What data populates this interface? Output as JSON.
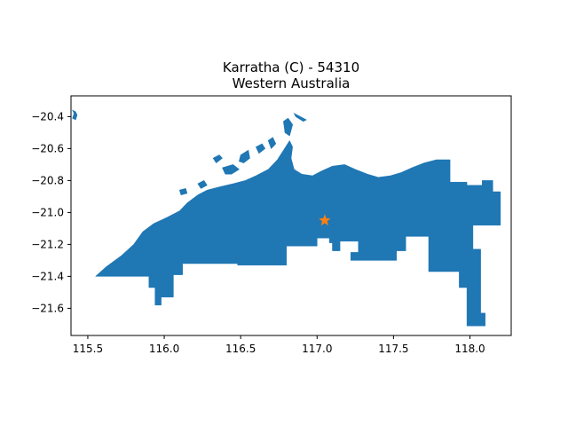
{
  "title": {
    "line1": "Karratha (C) - 54310",
    "line2": "Western Australia"
  },
  "colors": {
    "region_fill": "#1f77b4",
    "marker": "#ff7f0e",
    "axes": "#000000"
  },
  "map": {
    "xlim": [
      115.39,
      118.27
    ],
    "ylim": [
      -21.77,
      -20.27
    ],
    "x_ticks": [
      115.5,
      116.0,
      116.5,
      117.0,
      117.5,
      118.0
    ],
    "x_tick_labels": [
      "115.5",
      "116.0",
      "116.5",
      "117.0",
      "117.5",
      "118.0"
    ],
    "y_ticks": [
      -20.4,
      -20.6,
      -20.8,
      -21.0,
      -21.2,
      -21.4,
      -21.6
    ],
    "y_tick_labels": [
      "−20.4",
      "−20.6",
      "−20.8",
      "−21.0",
      "−21.2",
      "−21.4",
      "−21.6"
    ],
    "marker_icon": "star-icon",
    "marker_location": {
      "lon": 117.05,
      "lat": -21.05
    },
    "region_polygon": [
      [
        115.55,
        -21.4
      ],
      [
        115.62,
        -21.34
      ],
      [
        115.72,
        -21.27
      ],
      [
        115.8,
        -21.2
      ],
      [
        115.86,
        -21.12
      ],
      [
        115.93,
        -21.07
      ],
      [
        116.02,
        -21.03
      ],
      [
        116.1,
        -20.99
      ],
      [
        116.15,
        -20.94
      ],
      [
        116.22,
        -20.89
      ],
      [
        116.28,
        -20.86
      ],
      [
        116.36,
        -20.84
      ],
      [
        116.45,
        -20.82
      ],
      [
        116.53,
        -20.8
      ],
      [
        116.6,
        -20.77
      ],
      [
        116.68,
        -20.73
      ],
      [
        116.74,
        -20.67
      ],
      [
        116.78,
        -20.61
      ],
      [
        116.82,
        -20.55
      ],
      [
        116.84,
        -20.59
      ],
      [
        116.83,
        -20.66
      ],
      [
        116.85,
        -20.73
      ],
      [
        116.9,
        -20.76
      ],
      [
        116.97,
        -20.77
      ],
      [
        117.03,
        -20.74
      ],
      [
        117.1,
        -20.71
      ],
      [
        117.18,
        -20.7
      ],
      [
        117.25,
        -20.73
      ],
      [
        117.33,
        -20.76
      ],
      [
        117.4,
        -20.78
      ],
      [
        117.48,
        -20.77
      ],
      [
        117.55,
        -20.75
      ],
      [
        117.62,
        -20.72
      ],
      [
        117.7,
        -20.69
      ],
      [
        117.78,
        -20.67
      ],
      [
        117.87,
        -20.67
      ],
      [
        117.87,
        -20.81
      ],
      [
        117.98,
        -20.81
      ],
      [
        117.98,
        -20.83
      ],
      [
        118.08,
        -20.83
      ],
      [
        118.08,
        -20.8
      ],
      [
        118.15,
        -20.8
      ],
      [
        118.15,
        -20.87
      ],
      [
        118.2,
        -20.87
      ],
      [
        118.2,
        -21.08
      ],
      [
        118.02,
        -21.08
      ],
      [
        118.02,
        -21.23
      ],
      [
        118.07,
        -21.23
      ],
      [
        118.07,
        -21.63
      ],
      [
        118.1,
        -21.63
      ],
      [
        118.1,
        -21.71
      ],
      [
        117.98,
        -21.71
      ],
      [
        117.98,
        -21.47
      ],
      [
        117.93,
        -21.47
      ],
      [
        117.93,
        -21.37
      ],
      [
        117.73,
        -21.37
      ],
      [
        117.73,
        -21.15
      ],
      [
        117.58,
        -21.15
      ],
      [
        117.58,
        -21.24
      ],
      [
        117.52,
        -21.24
      ],
      [
        117.52,
        -21.3
      ],
      [
        117.22,
        -21.3
      ],
      [
        117.22,
        -21.25
      ],
      [
        117.27,
        -21.25
      ],
      [
        117.27,
        -21.18
      ],
      [
        117.15,
        -21.18
      ],
      [
        117.15,
        -21.24
      ],
      [
        117.1,
        -21.24
      ],
      [
        117.1,
        -21.19
      ],
      [
        117.08,
        -21.19
      ],
      [
        117.08,
        -21.16
      ],
      [
        117.0,
        -21.16
      ],
      [
        117.0,
        -21.21
      ],
      [
        116.8,
        -21.21
      ],
      [
        116.8,
        -21.33
      ],
      [
        116.48,
        -21.33
      ],
      [
        116.48,
        -21.32
      ],
      [
        116.12,
        -21.32
      ],
      [
        116.12,
        -21.39
      ],
      [
        116.06,
        -21.39
      ],
      [
        116.06,
        -21.53
      ],
      [
        115.98,
        -21.53
      ],
      [
        115.98,
        -21.58
      ],
      [
        115.94,
        -21.58
      ],
      [
        115.94,
        -21.47
      ],
      [
        115.9,
        -21.47
      ],
      [
        115.9,
        -21.4
      ]
    ],
    "islands": [
      [
        [
          115.4,
          -20.36
        ],
        [
          115.42,
          -20.37
        ],
        [
          115.43,
          -20.39
        ],
        [
          115.42,
          -20.42
        ],
        [
          115.4,
          -20.41
        ],
        [
          115.41,
          -20.38
        ]
      ],
      [
        [
          116.32,
          -20.66
        ],
        [
          116.36,
          -20.64
        ],
        [
          116.38,
          -20.66
        ],
        [
          116.34,
          -20.69
        ]
      ],
      [
        [
          116.5,
          -20.64
        ],
        [
          116.55,
          -20.61
        ],
        [
          116.56,
          -20.66
        ],
        [
          116.52,
          -20.69
        ],
        [
          116.49,
          -20.68
        ]
      ],
      [
        [
          116.38,
          -20.72
        ],
        [
          116.45,
          -20.7
        ],
        [
          116.49,
          -20.73
        ],
        [
          116.44,
          -20.76
        ],
        [
          116.4,
          -20.76
        ]
      ],
      [
        [
          116.6,
          -20.59
        ],
        [
          116.64,
          -20.57
        ],
        [
          116.66,
          -20.6
        ],
        [
          116.62,
          -20.63
        ]
      ],
      [
        [
          116.78,
          -20.43
        ],
        [
          116.81,
          -20.41
        ],
        [
          116.84,
          -20.45
        ],
        [
          116.82,
          -20.52
        ],
        [
          116.79,
          -20.5
        ]
      ],
      [
        [
          116.68,
          -20.55
        ],
        [
          116.71,
          -20.53
        ],
        [
          116.73,
          -20.57
        ],
        [
          116.7,
          -20.6
        ]
      ],
      [
        [
          116.22,
          -20.82
        ],
        [
          116.26,
          -20.8
        ],
        [
          116.28,
          -20.83
        ],
        [
          116.24,
          -20.85
        ]
      ],
      [
        [
          116.85,
          -20.38
        ],
        [
          116.89,
          -20.4
        ],
        [
          116.93,
          -20.42
        ],
        [
          116.91,
          -20.43
        ],
        [
          116.86,
          -20.4
        ]
      ],
      [
        [
          116.1,
          -20.86
        ],
        [
          116.14,
          -20.85
        ],
        [
          116.15,
          -20.88
        ],
        [
          116.11,
          -20.89
        ]
      ]
    ]
  }
}
